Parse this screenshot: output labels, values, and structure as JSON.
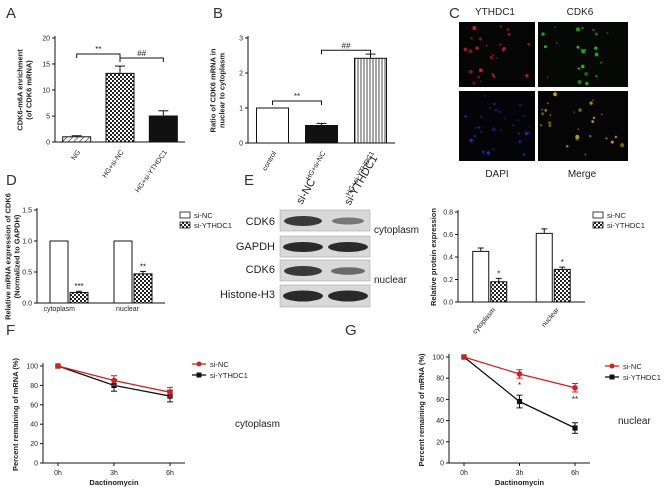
{
  "panel_letters": {
    "A": "A",
    "B": "B",
    "C": "C",
    "D": "D",
    "E": "E",
    "F": "F",
    "G": "G"
  },
  "colors": {
    "black": "#111111",
    "red": "#cc2222",
    "fluor_red": "#d0202a",
    "fluor_green": "#21c02a",
    "fluor_blue": "#2233aa"
  },
  "chart_data": [
    {
      "panel": "A",
      "type": "bar",
      "ylabel": "CDK6-m6A enrichment\n(of CDK6 mRNA)",
      "ylim": [
        0,
        20
      ],
      "yticks": [
        0,
        5,
        10,
        15,
        20
      ],
      "categories": [
        "NG",
        "HG+si-NC",
        "HG+si-YTHDC1"
      ],
      "values": [
        1,
        13.2,
        5.0
      ],
      "errors": [
        0.2,
        1.4,
        1.0
      ],
      "patterns": [
        "hatch",
        "checker",
        "black"
      ],
      "annotations": [
        {
          "text": "**",
          "between": [
            0,
            1
          ]
        },
        {
          "text": "##",
          "between": [
            1,
            2
          ]
        }
      ]
    },
    {
      "panel": "B",
      "type": "bar",
      "ylabel": "Ratio of CDK6 mRNA in\nnuclear to cytoplasm",
      "ylim": [
        0,
        3
      ],
      "yticks": [
        0,
        1,
        2,
        3
      ],
      "categories": [
        "control",
        "HG+si-NC",
        "HG+si-YTHDC1"
      ],
      "values": [
        1.0,
        0.5,
        2.42
      ],
      "errors": [
        0,
        0.06,
        0.12
      ],
      "patterns": [
        "white",
        "black",
        "vstripe"
      ],
      "annotations": [
        {
          "text": "**",
          "between": [
            0,
            1
          ]
        },
        {
          "text": "##",
          "between": [
            1,
            2
          ]
        }
      ]
    },
    {
      "panel": "D",
      "type": "bar",
      "ylabel": "Relative mRNA expression of CDK6\n(Normalized to GAPDH)",
      "ylim": [
        0,
        1.5
      ],
      "yticks": [
        "0.0",
        "0.5",
        "1.0",
        "1.5"
      ],
      "categories": [
        "cytoplasm",
        "nuclear"
      ],
      "series": [
        {
          "name": "si-NC",
          "values": [
            1.0,
            1.0
          ],
          "errors": [
            0,
            0
          ]
        },
        {
          "name": "si-YTHDC1",
          "values": [
            0.17,
            0.47
          ],
          "errors": [
            0.02,
            0.04
          ]
        }
      ],
      "sig": [
        "***",
        "**"
      ]
    },
    {
      "panel": "E",
      "type": "bar",
      "ylabel": "Relative protein expression",
      "ylim": [
        0,
        0.8
      ],
      "yticks": [
        "0.0",
        "0.2",
        "0.4",
        "0.6",
        "0.8"
      ],
      "categories": [
        "cytoplasm",
        "nuclear"
      ],
      "series": [
        {
          "name": "si-NC",
          "values": [
            0.45,
            0.61
          ],
          "errors": [
            0.03,
            0.04
          ]
        },
        {
          "name": "si-YTHDC1",
          "values": [
            0.18,
            0.29
          ],
          "errors": [
            0.03,
            0.02
          ]
        }
      ],
      "sig": [
        "*",
        "*"
      ]
    },
    {
      "panel": "F",
      "type": "line",
      "ylabel": "Percent remaining of mRNA (%)",
      "xlabel": "Dactinomycin",
      "ylim": [
        0,
        100
      ],
      "yticks": [
        0,
        20,
        40,
        60,
        80,
        100
      ],
      "categories": [
        "0h",
        "3h",
        "6h"
      ],
      "series": [
        {
          "name": "si-NC",
          "values": [
            100,
            85,
            73
          ],
          "errors": [
            0,
            5,
            5
          ]
        },
        {
          "name": "si-YTHDC1",
          "values": [
            100,
            80,
            69
          ],
          "errors": [
            0,
            6,
            6
          ]
        }
      ],
      "note": "cytoplasm"
    },
    {
      "panel": "G",
      "type": "line",
      "ylabel": "Percent remaining of mRNA (%)",
      "xlabel": "Dactinomycin",
      "ylim": [
        0,
        100
      ],
      "yticks": [
        0,
        20,
        40,
        60,
        80,
        100
      ],
      "categories": [
        "0h",
        "3h",
        "6h"
      ],
      "series": [
        {
          "name": "si-NC",
          "values": [
            100,
            84,
            71
          ],
          "errors": [
            0,
            4,
            4
          ]
        },
        {
          "name": "si-YTHDC1",
          "values": [
            100,
            58,
            33
          ],
          "errors": [
            0,
            6,
            5
          ]
        }
      ],
      "sig": [
        "",
        "*",
        "**"
      ],
      "note": "nuclear"
    }
  ],
  "microscopy": {
    "columns": [
      "YTHDC1",
      "CDK6"
    ],
    "bottom_labels": [
      "DAPI",
      "Merge"
    ]
  },
  "western": {
    "lanes": [
      "si-NC",
      "si-YTHDC1"
    ],
    "rows": [
      "CDK6",
      "GAPDH",
      "CDK6",
      "Histone-H3"
    ],
    "conditions": [
      "cytoplasm",
      "nuclear"
    ]
  }
}
